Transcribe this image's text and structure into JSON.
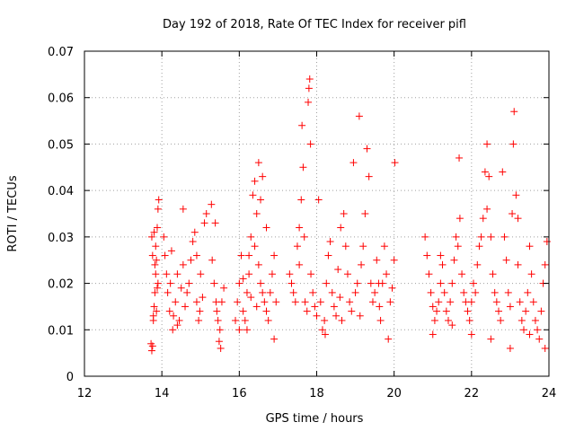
{
  "chart_data": {
    "type": "scatter",
    "title": "Day 192 of 2018, Rate Of TEC Index for receiver pifl",
    "xlabel": "GPS time / hours",
    "ylabel": "ROTI / TECUs",
    "xlim": [
      12,
      24
    ],
    "ylim": [
      0,
      0.07
    ],
    "x_ticks": [
      12,
      14,
      16,
      18,
      20,
      22,
      24
    ],
    "x_tick_labels": [
      "12",
      "14",
      "16",
      "18",
      "20",
      "22",
      "24"
    ],
    "y_ticks": [
      0,
      0.01,
      0.02,
      0.03,
      0.04,
      0.05,
      0.06,
      0.07
    ],
    "y_tick_labels": [
      "0",
      "0.01",
      "0.02",
      "0.03",
      "0.04",
      "0.05",
      "0.06",
      "0.07"
    ],
    "grid": true,
    "marker": "plus",
    "color": "#ff0000",
    "series": [
      {
        "name": "ROTI",
        "points": [
          [
            13.72,
            0.007
          ],
          [
            13.74,
            0.0055
          ],
          [
            13.76,
            0.0065
          ],
          [
            13.78,
            0.012
          ],
          [
            13.8,
            0.015
          ],
          [
            13.82,
            0.018
          ],
          [
            13.84,
            0.022
          ],
          [
            13.86,
            0.025
          ],
          [
            13.88,
            0.032
          ],
          [
            13.9,
            0.036
          ],
          [
            13.92,
            0.038
          ],
          [
            13.8,
            0.031
          ],
          [
            13.84,
            0.028
          ],
          [
            13.86,
            0.014
          ],
          [
            13.9,
            0.02
          ],
          [
            13.76,
            0.026
          ],
          [
            13.74,
            0.03
          ],
          [
            13.82,
            0.024
          ],
          [
            13.88,
            0.019
          ],
          [
            13.78,
            0.013
          ],
          [
            14.05,
            0.03
          ],
          [
            14.08,
            0.026
          ],
          [
            14.12,
            0.022
          ],
          [
            14.15,
            0.018
          ],
          [
            14.2,
            0.014
          ],
          [
            14.22,
            0.02
          ],
          [
            14.25,
            0.027
          ],
          [
            14.3,
            0.013
          ],
          [
            14.35,
            0.016
          ],
          [
            14.4,
            0.022
          ],
          [
            14.45,
            0.012
          ],
          [
            14.5,
            0.019
          ],
          [
            14.55,
            0.024
          ],
          [
            14.6,
            0.015
          ],
          [
            14.65,
            0.018
          ],
          [
            14.7,
            0.02
          ],
          [
            14.75,
            0.025
          ],
          [
            14.8,
            0.029
          ],
          [
            14.85,
            0.031
          ],
          [
            14.9,
            0.016
          ],
          [
            14.95,
            0.012
          ],
          [
            15.0,
            0.022
          ],
          [
            15.05,
            0.017
          ],
          [
            15.1,
            0.033
          ],
          [
            15.15,
            0.035
          ],
          [
            14.55,
            0.036
          ],
          [
            14.4,
            0.011
          ],
          [
            14.28,
            0.01
          ],
          [
            14.9,
            0.026
          ],
          [
            14.98,
            0.014
          ],
          [
            15.3,
            0.025
          ],
          [
            15.35,
            0.02
          ],
          [
            15.4,
            0.016
          ],
          [
            15.45,
            0.012
          ],
          [
            15.48,
            0.0075
          ],
          [
            15.52,
            0.006
          ],
          [
            15.55,
            0.016
          ],
          [
            15.6,
            0.019
          ],
          [
            15.28,
            0.037
          ],
          [
            15.38,
            0.033
          ],
          [
            15.5,
            0.01
          ],
          [
            15.42,
            0.014
          ],
          [
            15.9,
            0.012
          ],
          [
            15.95,
            0.016
          ],
          [
            16.0,
            0.02
          ],
          [
            16.05,
            0.026
          ],
          [
            16.1,
            0.014
          ],
          [
            16.15,
            0.012
          ],
          [
            16.2,
            0.018
          ],
          [
            16.25,
            0.022
          ],
          [
            16.3,
            0.03
          ],
          [
            16.35,
            0.039
          ],
          [
            16.4,
            0.042
          ],
          [
            16.45,
            0.035
          ],
          [
            16.5,
            0.024
          ],
          [
            16.55,
            0.02
          ],
          [
            16.6,
            0.018
          ],
          [
            16.65,
            0.016
          ],
          [
            16.7,
            0.014
          ],
          [
            16.75,
            0.012
          ],
          [
            16.8,
            0.018
          ],
          [
            16.85,
            0.022
          ],
          [
            16.9,
            0.026
          ],
          [
            16.95,
            0.016
          ],
          [
            16.0,
            0.01
          ],
          [
            16.2,
            0.01
          ],
          [
            16.5,
            0.046
          ],
          [
            16.6,
            0.043
          ],
          [
            16.4,
            0.028
          ],
          [
            16.3,
            0.017
          ],
          [
            16.1,
            0.021
          ],
          [
            16.9,
            0.008
          ],
          [
            16.7,
            0.032
          ],
          [
            16.55,
            0.038
          ],
          [
            16.25,
            0.026
          ],
          [
            16.45,
            0.015
          ],
          [
            17.3,
            0.022
          ],
          [
            17.35,
            0.02
          ],
          [
            17.4,
            0.018
          ],
          [
            17.45,
            0.016
          ],
          [
            17.5,
            0.028
          ],
          [
            17.55,
            0.032
          ],
          [
            17.6,
            0.038
          ],
          [
            17.62,
            0.054
          ],
          [
            17.65,
            0.045
          ],
          [
            17.7,
            0.016
          ],
          [
            17.75,
            0.014
          ],
          [
            17.78,
            0.059
          ],
          [
            17.8,
            0.062
          ],
          [
            17.82,
            0.064
          ],
          [
            17.84,
            0.05
          ],
          [
            17.85,
            0.022
          ],
          [
            17.9,
            0.018
          ],
          [
            17.95,
            0.015
          ],
          [
            18.0,
            0.013
          ],
          [
            18.05,
            0.038
          ],
          [
            18.1,
            0.016
          ],
          [
            18.15,
            0.01
          ],
          [
            18.2,
            0.012
          ],
          [
            18.25,
            0.02
          ],
          [
            18.3,
            0.026
          ],
          [
            18.35,
            0.029
          ],
          [
            18.4,
            0.018
          ],
          [
            18.45,
            0.015
          ],
          [
            18.5,
            0.013
          ],
          [
            18.55,
            0.023
          ],
          [
            18.6,
            0.017
          ],
          [
            18.65,
            0.012
          ],
          [
            18.7,
            0.035
          ],
          [
            18.75,
            0.028
          ],
          [
            18.8,
            0.022
          ],
          [
            18.85,
            0.016
          ],
          [
            18.9,
            0.014
          ],
          [
            18.95,
            0.046
          ],
          [
            19.0,
            0.018
          ],
          [
            19.05,
            0.02
          ],
          [
            19.1,
            0.056
          ],
          [
            19.15,
            0.024
          ],
          [
            19.2,
            0.028
          ],
          [
            19.25,
            0.035
          ],
          [
            19.3,
            0.049
          ],
          [
            19.35,
            0.043
          ],
          [
            19.4,
            0.02
          ],
          [
            19.45,
            0.016
          ],
          [
            19.5,
            0.018
          ],
          [
            19.55,
            0.025
          ],
          [
            19.6,
            0.02
          ],
          [
            19.65,
            0.012
          ],
          [
            19.7,
            0.02
          ],
          [
            19.75,
            0.028
          ],
          [
            19.8,
            0.022
          ],
          [
            19.85,
            0.008
          ],
          [
            19.9,
            0.016
          ],
          [
            19.95,
            0.019
          ],
          [
            20.0,
            0.025
          ],
          [
            20.02,
            0.046
          ],
          [
            17.55,
            0.024
          ],
          [
            17.68,
            0.03
          ],
          [
            18.22,
            0.009
          ],
          [
            18.62,
            0.032
          ],
          [
            19.12,
            0.013
          ],
          [
            19.62,
            0.015
          ],
          [
            20.8,
            0.03
          ],
          [
            20.85,
            0.026
          ],
          [
            20.9,
            0.022
          ],
          [
            20.95,
            0.018
          ],
          [
            21.0,
            0.015
          ],
          [
            21.05,
            0.012
          ],
          [
            21.1,
            0.014
          ],
          [
            21.15,
            0.016
          ],
          [
            21.2,
            0.02
          ],
          [
            21.25,
            0.024
          ],
          [
            21.3,
            0.018
          ],
          [
            21.35,
            0.014
          ],
          [
            21.4,
            0.012
          ],
          [
            21.45,
            0.016
          ],
          [
            21.5,
            0.02
          ],
          [
            21.55,
            0.025
          ],
          [
            21.6,
            0.03
          ],
          [
            21.65,
            0.028
          ],
          [
            21.68,
            0.047
          ],
          [
            21.7,
            0.034
          ],
          [
            21.75,
            0.022
          ],
          [
            21.8,
            0.018
          ],
          [
            21.85,
            0.016
          ],
          [
            21.9,
            0.014
          ],
          [
            21.95,
            0.012
          ],
          [
            22.0,
            0.016
          ],
          [
            22.05,
            0.02
          ],
          [
            22.1,
            0.018
          ],
          [
            22.15,
            0.024
          ],
          [
            22.2,
            0.028
          ],
          [
            22.25,
            0.03
          ],
          [
            22.3,
            0.034
          ],
          [
            22.35,
            0.044
          ],
          [
            22.4,
            0.05
          ],
          [
            22.45,
            0.043
          ],
          [
            22.5,
            0.03
          ],
          [
            22.55,
            0.022
          ],
          [
            22.6,
            0.018
          ],
          [
            22.65,
            0.016
          ],
          [
            22.7,
            0.014
          ],
          [
            22.75,
            0.012
          ],
          [
            22.8,
            0.044
          ],
          [
            22.85,
            0.03
          ],
          [
            22.9,
            0.025
          ],
          [
            22.95,
            0.018
          ],
          [
            23.0,
            0.015
          ],
          [
            23.05,
            0.035
          ],
          [
            23.08,
            0.05
          ],
          [
            23.1,
            0.057
          ],
          [
            23.15,
            0.039
          ],
          [
            23.2,
            0.024
          ],
          [
            23.25,
            0.016
          ],
          [
            23.3,
            0.012
          ],
          [
            23.35,
            0.01
          ],
          [
            23.4,
            0.014
          ],
          [
            23.45,
            0.018
          ],
          [
            23.5,
            0.028
          ],
          [
            23.55,
            0.022
          ],
          [
            23.6,
            0.016
          ],
          [
            23.65,
            0.012
          ],
          [
            23.7,
            0.01
          ],
          [
            23.75,
            0.008
          ],
          [
            23.8,
            0.014
          ],
          [
            23.85,
            0.02
          ],
          [
            23.9,
            0.024
          ],
          [
            23.95,
            0.029
          ],
          [
            21.0,
            0.009
          ],
          [
            21.5,
            0.011
          ],
          [
            22.0,
            0.009
          ],
          [
            22.5,
            0.008
          ],
          [
            23.0,
            0.006
          ],
          [
            23.5,
            0.009
          ],
          [
            23.9,
            0.006
          ],
          [
            21.2,
            0.026
          ],
          [
            22.4,
            0.036
          ],
          [
            23.2,
            0.034
          ]
        ]
      }
    ]
  }
}
